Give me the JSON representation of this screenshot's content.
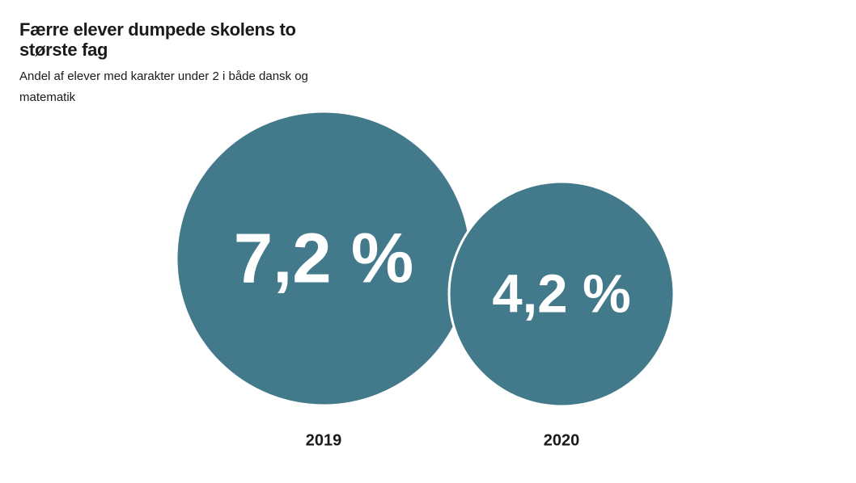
{
  "chart_data": {
    "type": "bubble",
    "title": "Færre elever dumpede skolens to største fag",
    "subtitle": "Andel af elever med karakter under 2 i både dansk og matematik",
    "categories": [
      "2019",
      "2020"
    ],
    "values": [
      7.2,
      4.2
    ],
    "value_labels": [
      "7,2 %",
      "4,2 %"
    ],
    "unit": "%",
    "legend": "none",
    "grid": false
  },
  "colors": {
    "bubble": "#437a8b",
    "bubble_outline": "#ffffff",
    "text": "#1a1a1a"
  }
}
